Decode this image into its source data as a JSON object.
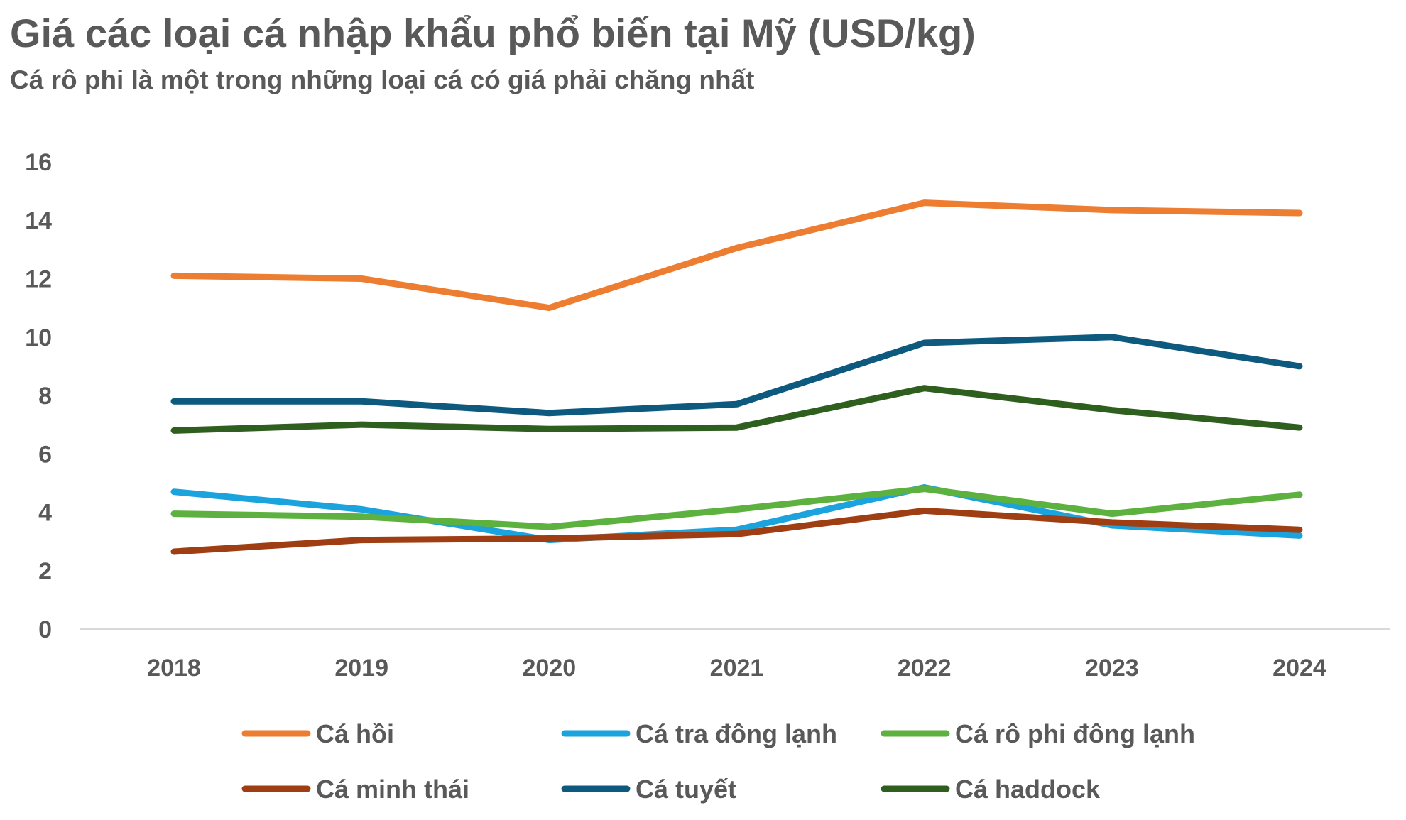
{
  "title": "Giá các loại cá nhập khẩu phổ biến tại Mỹ (USD/kg)",
  "subtitle": "Cá rô phi là một trong những loại cá có giá phải chăng nhất",
  "chart_data": {
    "type": "line",
    "title": "Giá các loại cá nhập khẩu phổ biến tại Mỹ (USD/kg)",
    "subtitle": "Cá rô phi là một trong những loại cá có giá phải chăng nhất",
    "categories": [
      "2018",
      "2019",
      "2020",
      "2021",
      "2022",
      "2023",
      "2024"
    ],
    "ylim": [
      0,
      16
    ],
    "yticks": [
      0,
      2,
      4,
      6,
      8,
      10,
      12,
      14,
      16
    ],
    "grid": false,
    "legend_position": "bottom",
    "series": [
      {
        "name": "Cá hồi",
        "color": "#ED7D31",
        "values": [
          12.1,
          12.0,
          11.0,
          13.05,
          14.6,
          14.35,
          14.25
        ]
      },
      {
        "name": "Cá tra đông lạnh",
        "color": "#1AA3DC",
        "values": [
          4.7,
          4.1,
          3.05,
          3.4,
          4.85,
          3.55,
          3.2
        ]
      },
      {
        "name": "Cá rô phi đông lạnh",
        "color": "#5DB13E",
        "values": [
          3.95,
          3.85,
          3.5,
          4.1,
          4.8,
          3.95,
          4.6
        ]
      },
      {
        "name": "Cá minh thái",
        "color": "#9E3E12",
        "values": [
          2.65,
          3.05,
          3.1,
          3.25,
          4.05,
          3.65,
          3.4
        ]
      },
      {
        "name": "Cá tuyết",
        "color": "#0E5A7E",
        "values": [
          7.8,
          7.8,
          7.4,
          7.7,
          9.8,
          10.0,
          9.0
        ]
      },
      {
        "name": "Cá haddock",
        "color": "#2F5F1E",
        "values": [
          6.8,
          7.0,
          6.85,
          6.9,
          8.25,
          7.5,
          6.9
        ]
      }
    ]
  }
}
